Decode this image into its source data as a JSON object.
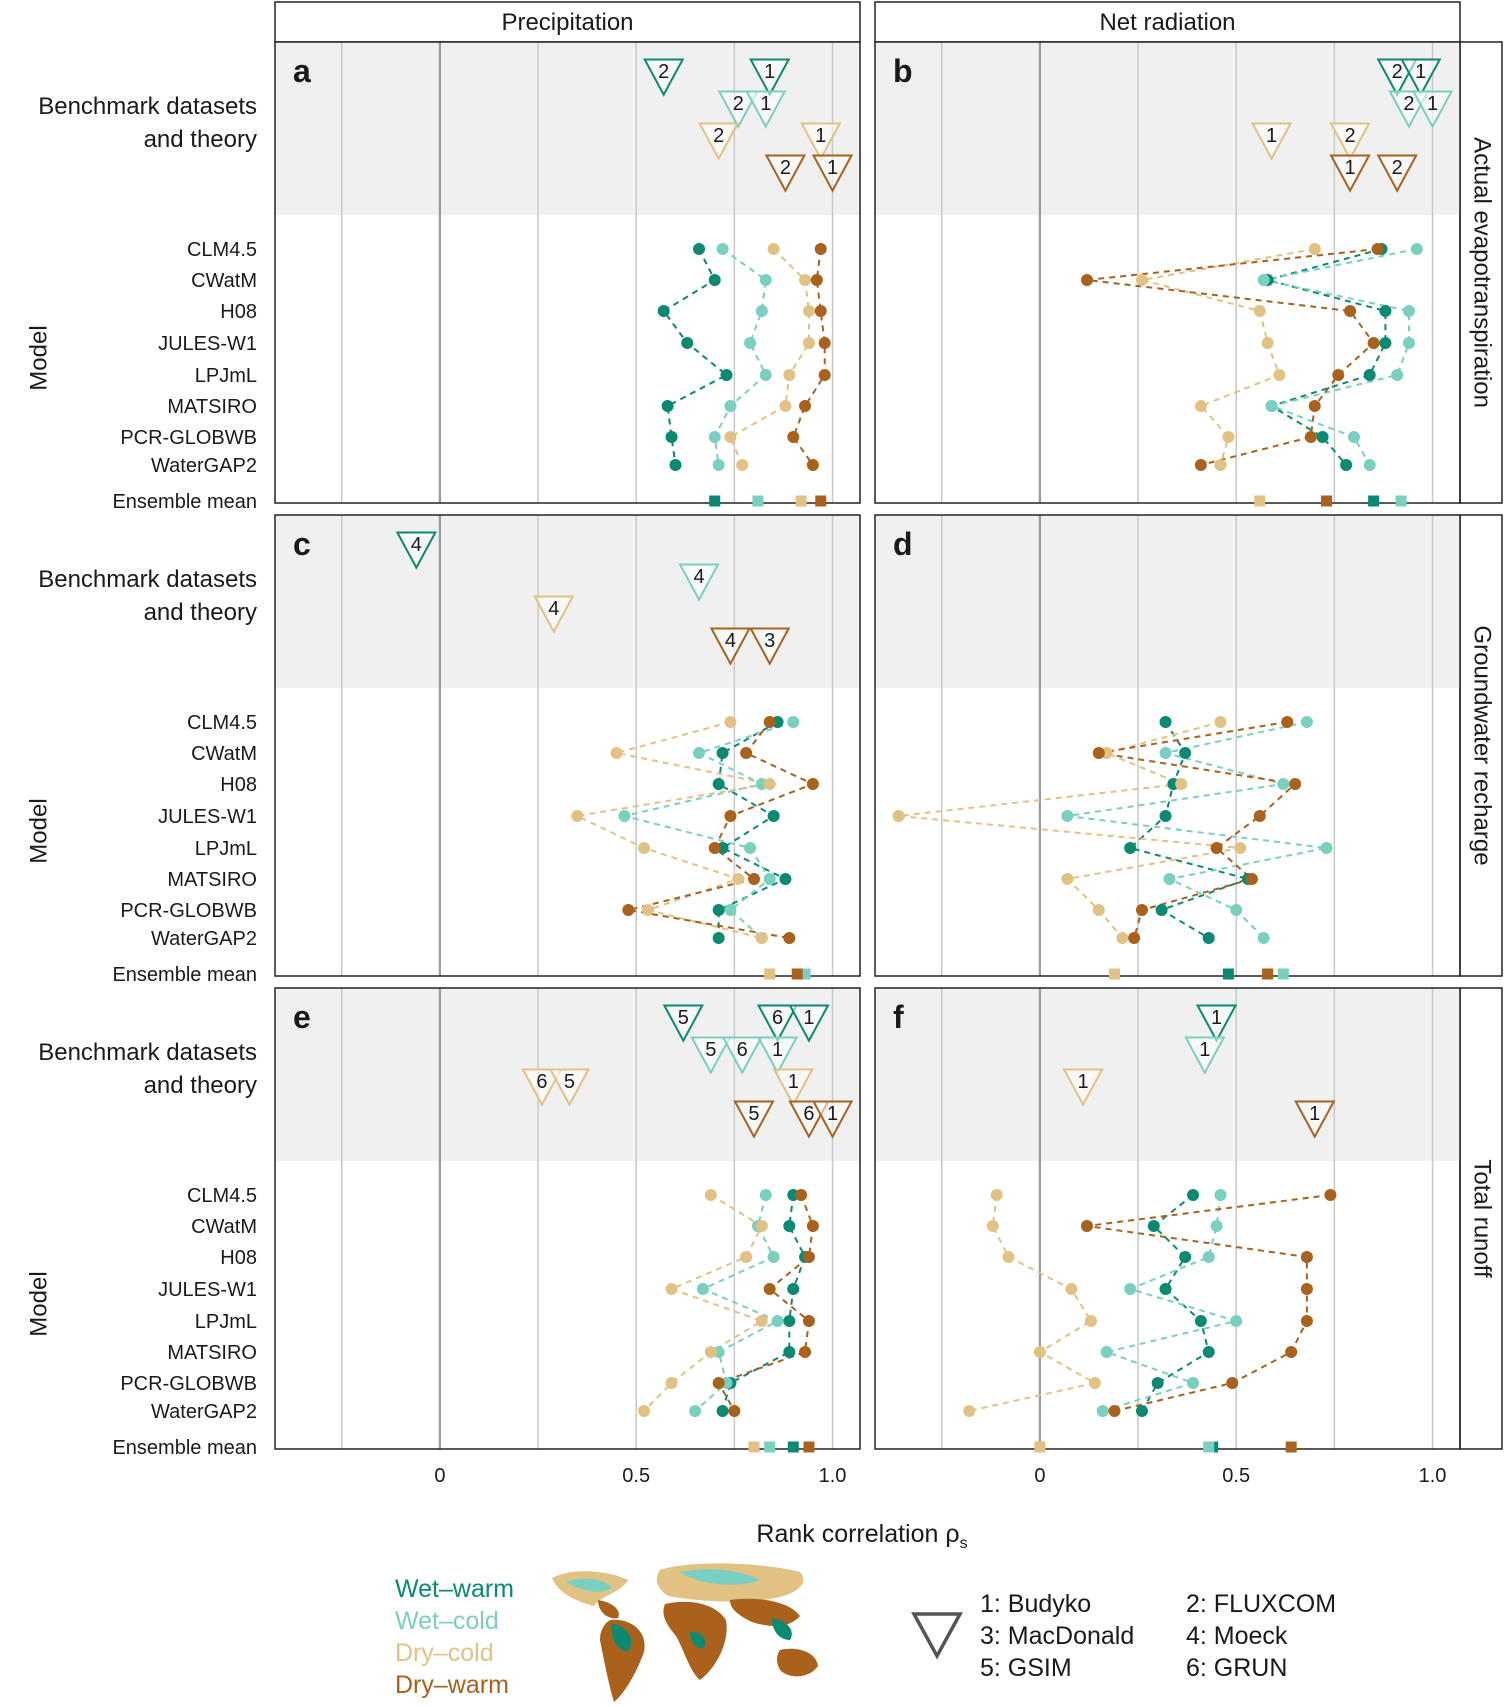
{
  "colors": {
    "wet_warm": "#0a8a72",
    "wet_cold": "#79d0c0",
    "dry_cold": "#e2c283",
    "dry_warm": "#a9611c"
  },
  "strips": {
    "columns": [
      "Precipitation",
      "Net radiation"
    ],
    "rows": [
      "Actual evapotranspiration",
      "Groundwater recharge",
      "Total runoff"
    ]
  },
  "labels": {
    "bench_line1": "Benchmark datasets",
    "bench_line2": "and theory",
    "model_axis": "Model",
    "ensemble": "Ensemble mean",
    "x_axis_label": "Rank correlation ρ",
    "x_axis_sub": "s"
  },
  "models": [
    "CLM4.5",
    "CWatM",
    "H08",
    "JULES-W1",
    "LPJmL",
    "MATSIRO",
    "PCR-GLOBWB",
    "WaterGAP2"
  ],
  "x_ticks": [
    "0",
    "0.5",
    "1.0"
  ],
  "legend": {
    "climates": [
      "Wet–warm",
      "Wet–cold",
      "Dry–cold",
      "Dry–warm"
    ],
    "datasets": [
      "1: Budyko",
      "2: FLUXCOM",
      "3: MacDonald",
      "4: Moeck",
      "5: GSIM",
      "6: GRUN"
    ]
  },
  "chart_data": [
    {
      "panel": "a",
      "type": "scatter",
      "column": "Precipitation",
      "row": "Actual evapotranspiration",
      "xlim": [
        -0.42,
        1.07
      ],
      "xlabel": "Rank correlation ρs",
      "benchmarks": {
        "wet_warm": [
          {
            "id": "2",
            "rho": 0.57
          },
          {
            "id": "1",
            "rho": 0.84
          }
        ],
        "wet_cold": [
          {
            "id": "2",
            "rho": 0.76
          },
          {
            "id": "1",
            "rho": 0.83
          }
        ],
        "dry_cold": [
          {
            "id": "2",
            "rho": 0.71
          },
          {
            "id": "1",
            "rho": 0.97
          }
        ],
        "dry_warm": [
          {
            "id": "2",
            "rho": 0.88
          },
          {
            "id": "1",
            "rho": 1.0
          }
        ]
      },
      "models": {
        "wet_warm": [
          0.66,
          0.7,
          0.57,
          0.63,
          0.73,
          0.58,
          0.59,
          0.6
        ],
        "wet_cold": [
          0.72,
          0.83,
          0.82,
          0.79,
          0.83,
          0.74,
          0.7,
          0.71
        ],
        "dry_cold": [
          0.85,
          0.93,
          0.94,
          0.94,
          0.89,
          0.88,
          0.74,
          0.77
        ],
        "dry_warm": [
          0.97,
          0.96,
          0.97,
          0.98,
          0.98,
          0.93,
          0.9,
          0.95
        ]
      },
      "ensemble": {
        "wet_warm": 0.7,
        "wet_cold": 0.81,
        "dry_cold": 0.92,
        "dry_warm": 0.97
      }
    },
    {
      "panel": "b",
      "type": "scatter",
      "column": "Net radiation",
      "row": "Actual evapotranspiration",
      "xlim": [
        -0.42,
        1.07
      ],
      "benchmarks": {
        "wet_warm": [
          {
            "id": "2",
            "rho": 0.91
          },
          {
            "id": "1",
            "rho": 0.97
          }
        ],
        "wet_cold": [
          {
            "id": "2",
            "rho": 0.94
          },
          {
            "id": "1",
            "rho": 1.0
          }
        ],
        "dry_cold": [
          {
            "id": "1",
            "rho": 0.59
          },
          {
            "id": "2",
            "rho": 0.79
          }
        ],
        "dry_warm": [
          {
            "id": "1",
            "rho": 0.79
          },
          {
            "id": "2",
            "rho": 0.91
          }
        ]
      },
      "models": {
        "wet_warm": [
          0.87,
          0.58,
          0.88,
          0.88,
          0.84,
          0.59,
          0.72,
          0.78
        ],
        "wet_cold": [
          0.96,
          0.57,
          0.94,
          0.94,
          0.91,
          0.59,
          0.8,
          0.84
        ],
        "dry_cold": [
          0.7,
          0.26,
          0.56,
          0.58,
          0.61,
          0.41,
          0.48,
          0.46
        ],
        "dry_warm": [
          0.86,
          0.12,
          0.79,
          0.85,
          0.76,
          0.7,
          0.69,
          0.41
        ]
      },
      "ensemble": {
        "wet_warm": 0.85,
        "wet_cold": 0.92,
        "dry_cold": 0.56,
        "dry_warm": 0.73
      }
    },
    {
      "panel": "c",
      "type": "scatter",
      "column": "Precipitation",
      "row": "Groundwater recharge",
      "xlim": [
        -0.42,
        1.07
      ],
      "benchmarks": {
        "wet_warm": [
          {
            "id": "4",
            "rho": -0.06
          }
        ],
        "wet_cold": [
          {
            "id": "4",
            "rho": 0.66
          }
        ],
        "dry_cold": [
          {
            "id": "4",
            "rho": 0.29
          }
        ],
        "dry_warm": [
          {
            "id": "4",
            "rho": 0.74
          },
          {
            "id": "3",
            "rho": 0.84
          }
        ]
      },
      "models": {
        "wet_warm": [
          0.86,
          0.72,
          0.71,
          0.85,
          0.72,
          0.88,
          0.71,
          0.71
        ],
        "wet_cold": [
          0.9,
          0.66,
          0.82,
          0.47,
          0.79,
          0.84,
          0.74,
          0.82
        ],
        "dry_cold": [
          0.74,
          0.45,
          0.84,
          0.35,
          0.52,
          0.76,
          0.53,
          0.82
        ],
        "dry_warm": [
          0.84,
          0.78,
          0.95,
          0.74,
          0.7,
          0.8,
          0.48,
          0.89
        ]
      },
      "ensemble": {
        "wet_warm": 0.92,
        "wet_cold": 0.93,
        "dry_cold": 0.84,
        "dry_warm": 0.91
      }
    },
    {
      "panel": "d",
      "type": "scatter",
      "column": "Net radiation",
      "row": "Groundwater recharge",
      "xlim": [
        -0.42,
        1.07
      ],
      "benchmarks": {
        "wet_warm": [],
        "wet_cold": [],
        "dry_cold": [],
        "dry_warm": []
      },
      "models": {
        "wet_warm": [
          0.32,
          0.37,
          0.34,
          0.32,
          0.23,
          0.53,
          0.31,
          0.43
        ],
        "wet_cold": [
          0.68,
          0.32,
          0.62,
          0.07,
          0.73,
          0.33,
          0.5,
          0.57
        ],
        "dry_cold": [
          0.46,
          0.17,
          0.36,
          -0.36,
          0.51,
          0.07,
          0.15,
          0.21
        ],
        "dry_warm": [
          0.63,
          0.15,
          0.65,
          0.56,
          0.45,
          0.54,
          0.26,
          0.24
        ]
      },
      "ensemble": {
        "wet_warm": 0.48,
        "wet_cold": 0.62,
        "dry_cold": 0.19,
        "dry_warm": 0.58
      }
    },
    {
      "panel": "e",
      "type": "scatter",
      "column": "Precipitation",
      "row": "Total runoff",
      "xlim": [
        -0.42,
        1.07
      ],
      "benchmarks": {
        "wet_warm": [
          {
            "id": "5",
            "rho": 0.62
          },
          {
            "id": "6",
            "rho": 0.86
          },
          {
            "id": "1",
            "rho": 0.94
          }
        ],
        "wet_cold": [
          {
            "id": "5",
            "rho": 0.69
          },
          {
            "id": "6",
            "rho": 0.77
          },
          {
            "id": "1",
            "rho": 0.86
          }
        ],
        "dry_cold": [
          {
            "id": "6",
            "rho": 0.26
          },
          {
            "id": "5",
            "rho": 0.33
          },
          {
            "id": "1",
            "rho": 0.9
          }
        ],
        "dry_warm": [
          {
            "id": "5",
            "rho": 0.8
          },
          {
            "id": "6",
            "rho": 0.94
          },
          {
            "id": "1",
            "rho": 1.0
          }
        ]
      },
      "models": {
        "wet_warm": [
          0.9,
          0.89,
          0.93,
          0.9,
          0.89,
          0.89,
          0.74,
          0.72
        ],
        "wet_cold": [
          0.83,
          0.81,
          0.85,
          0.67,
          0.86,
          0.71,
          0.73,
          0.65
        ],
        "dry_cold": [
          0.69,
          0.82,
          0.78,
          0.59,
          0.82,
          0.69,
          0.59,
          0.52
        ],
        "dry_warm": [
          0.92,
          0.95,
          0.94,
          0.84,
          0.94,
          0.93,
          0.71,
          0.75
        ]
      },
      "ensemble": {
        "wet_warm": 0.9,
        "wet_cold": 0.84,
        "dry_cold": 0.8,
        "dry_warm": 0.94
      }
    },
    {
      "panel": "f",
      "type": "scatter",
      "column": "Net radiation",
      "row": "Total runoff",
      "xlim": [
        -0.42,
        1.07
      ],
      "benchmarks": {
        "wet_warm": [
          {
            "id": "1",
            "rho": 0.45
          }
        ],
        "wet_cold": [
          {
            "id": "1",
            "rho": 0.42
          }
        ],
        "dry_cold": [
          {
            "id": "1",
            "rho": 0.11
          }
        ],
        "dry_warm": [
          {
            "id": "1",
            "rho": 0.7
          }
        ]
      },
      "models": {
        "wet_warm": [
          0.39,
          0.29,
          0.37,
          0.32,
          0.41,
          0.43,
          0.3,
          0.26
        ],
        "wet_cold": [
          0.46,
          0.45,
          0.43,
          0.23,
          0.5,
          0.17,
          0.39,
          0.16
        ],
        "dry_cold": [
          -0.11,
          -0.12,
          -0.08,
          0.08,
          0.13,
          0.0,
          0.14,
          -0.18
        ],
        "dry_warm": [
          0.74,
          0.12,
          0.68,
          0.68,
          0.68,
          0.64,
          0.49,
          0.19
        ]
      },
      "ensemble": {
        "wet_warm": 0.44,
        "wet_cold": 0.43,
        "dry_cold": 0.0,
        "dry_warm": 0.64
      }
    }
  ]
}
